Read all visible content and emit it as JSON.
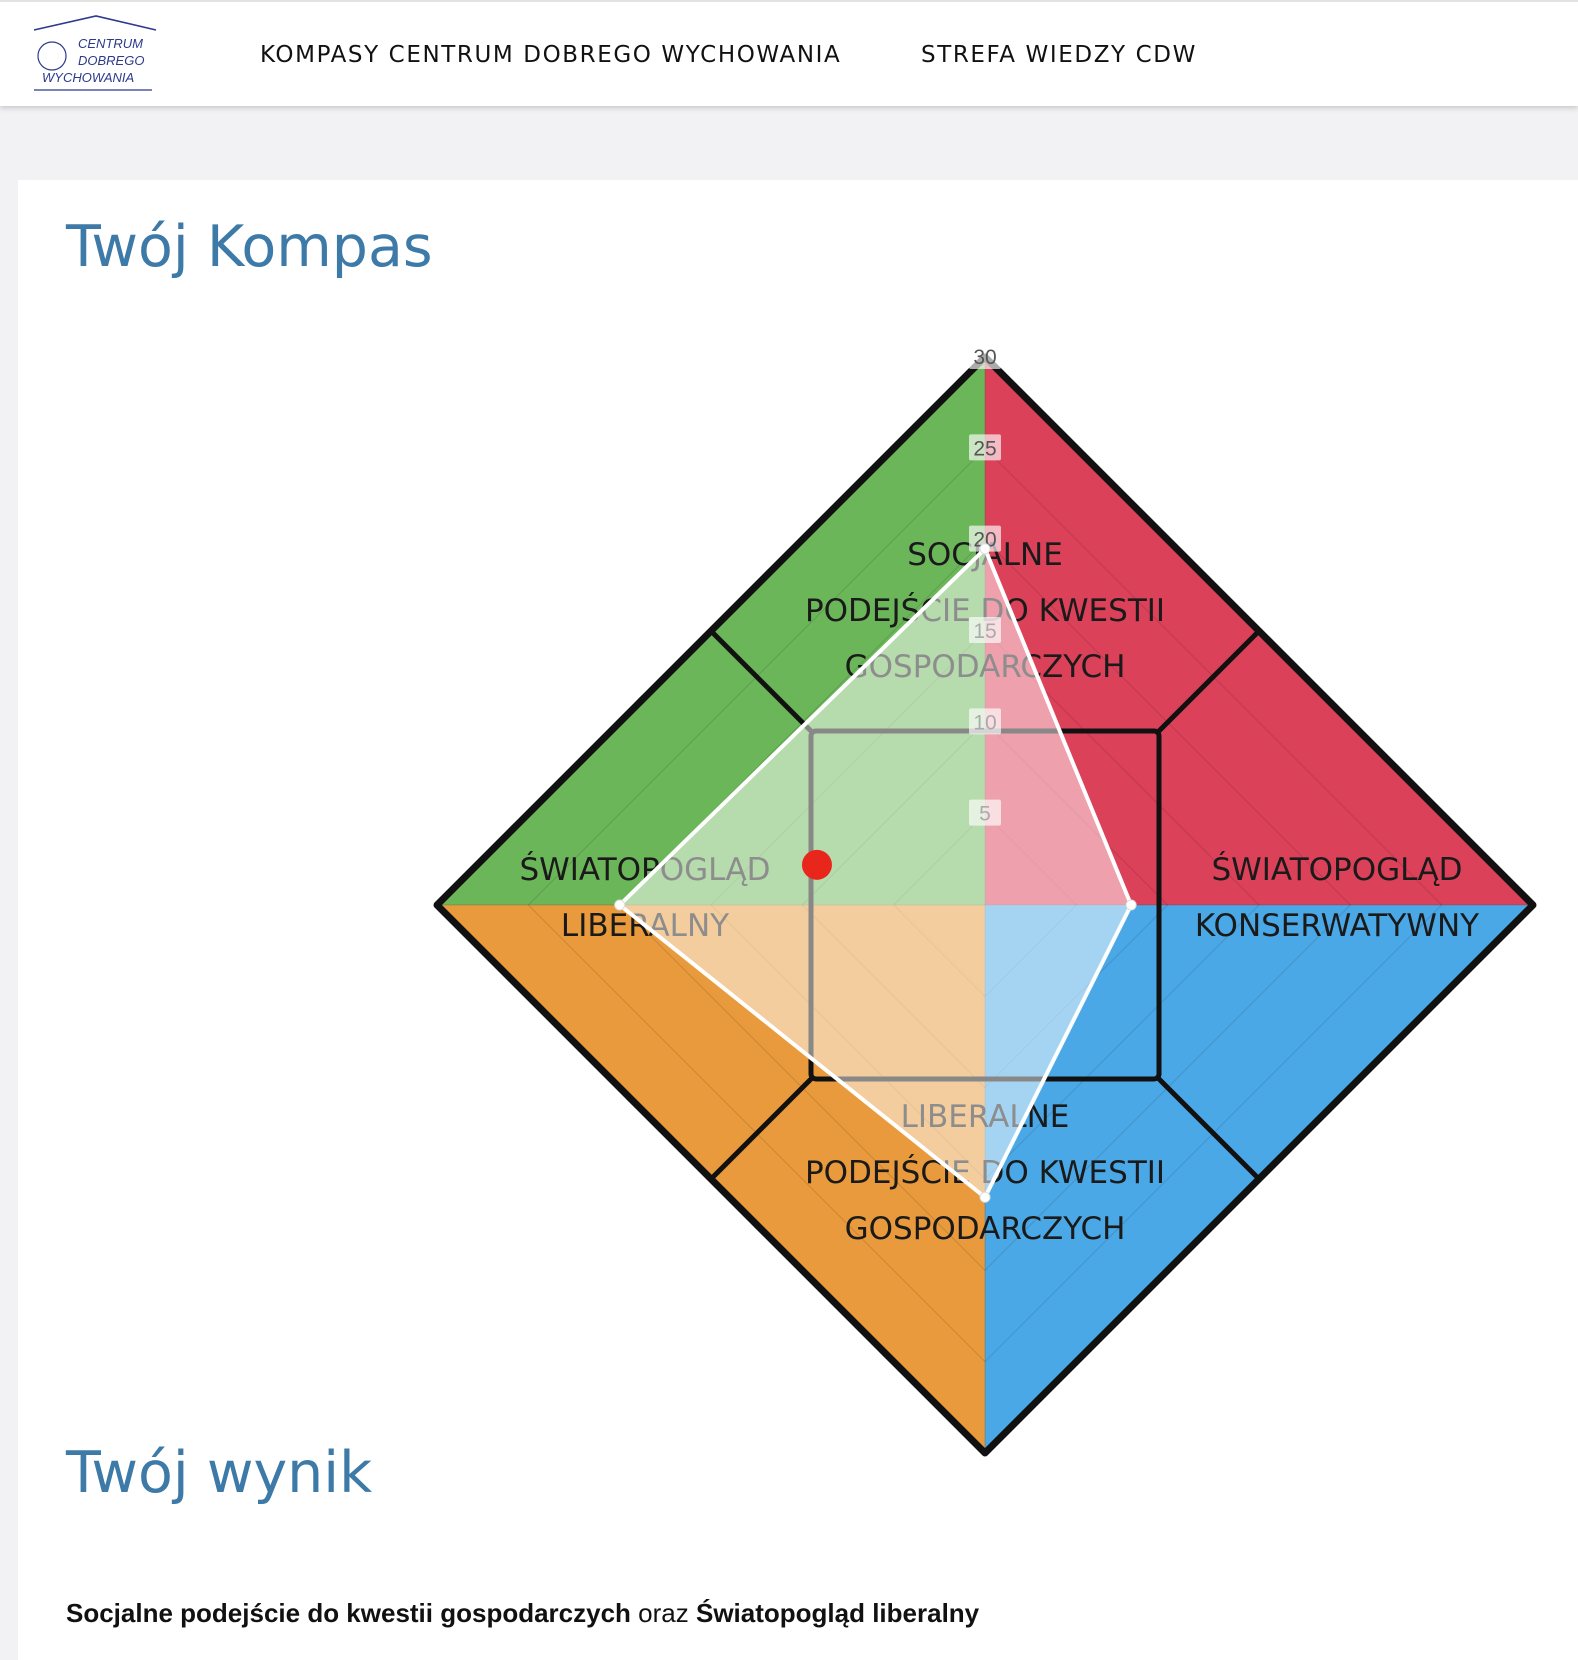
{
  "logo": {
    "line1": "CENTRUM",
    "line2": "DOBREGO",
    "line3": "WYCHOWANIA"
  },
  "nav": [
    {
      "label": "KOMPASY CENTRUM DOBREGO WYCHOWANIA"
    },
    {
      "label": "STREFA WIEDZY CDW"
    }
  ],
  "compass_section": {
    "title": "Twój Kompas"
  },
  "result_section": {
    "title": "Twój wynik",
    "part1": "Socjalne podejście do kwestii gospodarczych",
    "connector": " oraz ",
    "part2": "Światopogląd liberalny"
  },
  "chart_data": {
    "type": "radar",
    "title": "",
    "radial_ticks": [
      5,
      10,
      15,
      20,
      25,
      30
    ],
    "rmax": 30,
    "axes": [
      {
        "name": "SOCJALNE PODEJŚCIE DO KWESTII GOSPODARCZYCH",
        "lines": [
          "SOCJALNE",
          "PODEJŚCIE DO KWESTII",
          "GOSPODARCZYCH"
        ],
        "value": 19.5
      },
      {
        "name": "ŚWIATOPOGLĄD KONSERWATYWNY",
        "lines": [
          "ŚWIATOPOGLĄD",
          "KONSERWATYWNY"
        ],
        "value": 8
      },
      {
        "name": "LIBERALNE PODEJŚCIE DO KWESTII GOSPODARCZYCH",
        "lines": [
          "LIBERALNE",
          "PODEJŚCIE DO KWESTII",
          "GOSPODARCZYCH"
        ],
        "value": 16
      },
      {
        "name": "ŚWIATOPOGLĄD LIBERALNY",
        "lines": [
          "ŚWIATOPOGLĄD",
          "LIBERALNY"
        ],
        "value": 20
      }
    ],
    "result_point": {
      "x": -9.2,
      "y": 2.2
    },
    "quadrant_colors": {
      "top_left": "#6cb65a",
      "top_right": "#dc415a",
      "bottom_left": "#e89a3c",
      "bottom_right": "#4ba8e6"
    },
    "result_point_color": "#e8261c",
    "polygon_fill": "rgba(255,255,255,0.5)",
    "polygon_stroke": "#ffffff"
  }
}
